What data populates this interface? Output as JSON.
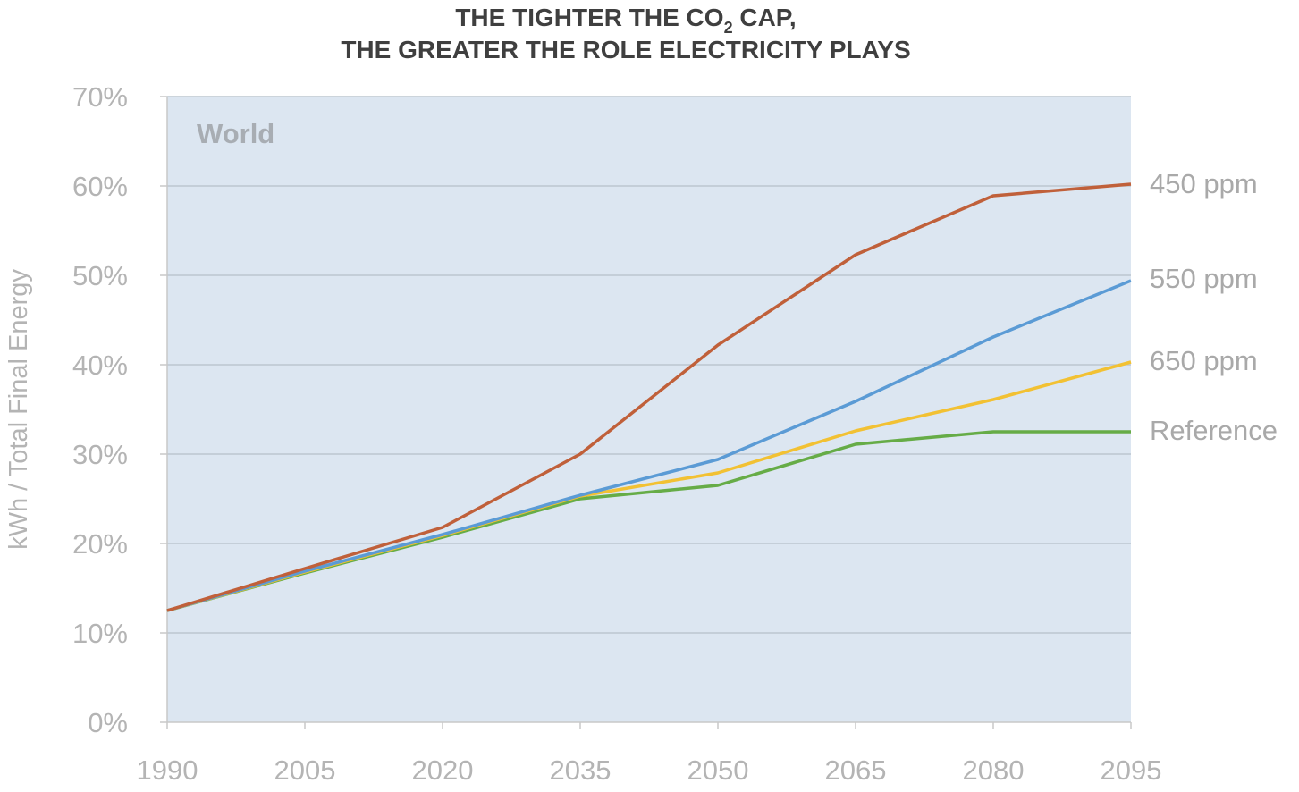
{
  "chart_data": {
    "type": "line",
    "title": {
      "line1_prefix": "THE TIGHTER THE CO",
      "line1_subscript": "2",
      "line1_suffix": " CAP,",
      "line2": "THE GREATER THE ROLE ELECTRICITY PLAYS"
    },
    "region_label": "World",
    "ylabel": "kWh / Total Final Energy",
    "xlabel": "",
    "x": [
      "1990",
      "2005",
      "2020",
      "2035",
      "2050",
      "2065",
      "2080",
      "2095"
    ],
    "yticks": [
      "0%",
      "10%",
      "20%",
      "30%",
      "40%",
      "50%",
      "60%",
      "70%"
    ],
    "ylim": [
      0,
      70
    ],
    "y_unit": "%",
    "grid": true,
    "legend": "direct labels at right end of lines",
    "plot_background": "#dce6f1",
    "series": [
      {
        "name": "450 ppm",
        "color": "#c0603a",
        "values": [
          12.5,
          17.2,
          21.8,
          30.0,
          42.2,
          52.3,
          58.9,
          60.2
        ]
      },
      {
        "name": "550 ppm",
        "color": "#5b9bd5",
        "values": [
          12.5,
          16.9,
          21.0,
          25.4,
          29.4,
          35.9,
          43.1,
          49.4
        ]
      },
      {
        "name": "650 ppm",
        "color": "#f2c133",
        "values": [
          12.5,
          16.8,
          20.9,
          25.3,
          27.9,
          32.6,
          36.1,
          40.3
        ]
      },
      {
        "name": "Reference",
        "color": "#66ac47",
        "values": [
          12.5,
          16.7,
          20.7,
          25.0,
          26.5,
          31.1,
          32.5,
          32.5
        ]
      }
    ]
  }
}
